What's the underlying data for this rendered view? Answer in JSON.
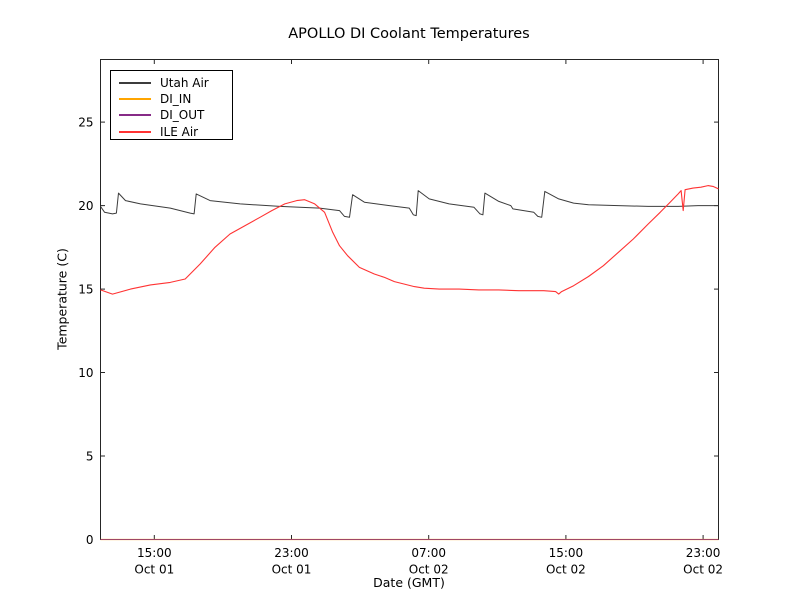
{
  "chart_data": {
    "type": "line",
    "title": "APOLLO DI Coolant Temperatures",
    "xlabel": "Date (GMT)",
    "ylabel": "Temperature (C)",
    "grid": false,
    "legend_position": "upper left",
    "x_unit": "hours since Oct 01 00:00 GMT",
    "xlim_hours": [
      11.86,
      47.9
    ],
    "ylim": [
      0,
      28.75
    ],
    "y_ticks": [
      0,
      5,
      10,
      15,
      20,
      25
    ],
    "x_ticks": [
      {
        "hour": 15,
        "time": "15:00",
        "date": "Oct 01"
      },
      {
        "hour": 23,
        "time": "23:00",
        "date": "Oct 01"
      },
      {
        "hour": 31,
        "time": "07:00",
        "date": "Oct 02"
      },
      {
        "hour": 39,
        "time": "15:00",
        "date": "Oct 02"
      },
      {
        "hour": 47,
        "time": "23:00",
        "date": "Oct 02"
      }
    ],
    "series": [
      {
        "name": "Utah Air",
        "color": "#3c3c3c",
        "points": [
          [
            11.86,
            19.95
          ],
          [
            12.1,
            19.6
          ],
          [
            12.56,
            19.5
          ],
          [
            12.79,
            19.55
          ],
          [
            12.91,
            20.75
          ],
          [
            13.32,
            20.3
          ],
          [
            14.19,
            20.1
          ],
          [
            15.93,
            19.85
          ],
          [
            17.09,
            19.55
          ],
          [
            17.32,
            19.5
          ],
          [
            17.44,
            20.7
          ],
          [
            18.25,
            20.3
          ],
          [
            20.0,
            20.1
          ],
          [
            22.32,
            19.95
          ],
          [
            24.64,
            19.85
          ],
          [
            25.8,
            19.7
          ],
          [
            26.09,
            19.35
          ],
          [
            26.38,
            19.3
          ],
          [
            26.56,
            20.65
          ],
          [
            27.25,
            20.2
          ],
          [
            28.71,
            20.0
          ],
          [
            29.87,
            19.85
          ],
          [
            30.1,
            19.45
          ],
          [
            30.27,
            19.4
          ],
          [
            30.39,
            20.9
          ],
          [
            31.03,
            20.4
          ],
          [
            32.19,
            20.1
          ],
          [
            33.64,
            19.9
          ],
          [
            33.99,
            19.5
          ],
          [
            34.16,
            19.45
          ],
          [
            34.28,
            20.75
          ],
          [
            35.09,
            20.25
          ],
          [
            35.79,
            20.0
          ],
          [
            35.91,
            19.8
          ],
          [
            37.13,
            19.6
          ],
          [
            37.36,
            19.35
          ],
          [
            37.59,
            19.3
          ],
          [
            37.77,
            20.85
          ],
          [
            38.58,
            20.4
          ],
          [
            39.45,
            20.15
          ],
          [
            40.32,
            20.05
          ],
          [
            42.06,
            20.0
          ],
          [
            43.8,
            19.95
          ],
          [
            45.55,
            19.95
          ],
          [
            46.71,
            20.0
          ],
          [
            47.9,
            20.0
          ]
        ]
      },
      {
        "name": "DI_IN",
        "color": "#ffa500",
        "points": [
          [
            11.86,
            0
          ],
          [
            47.9,
            0
          ]
        ]
      },
      {
        "name": "DI_OUT",
        "color": "#872b87",
        "points": [
          [
            11.86,
            0
          ],
          [
            47.9,
            0
          ]
        ]
      },
      {
        "name": "ILE Air",
        "color": "#ff3333",
        "points": [
          [
            11.86,
            14.95
          ],
          [
            12.56,
            14.7
          ],
          [
            13.61,
            15.0
          ],
          [
            14.77,
            15.25
          ],
          [
            15.93,
            15.4
          ],
          [
            16.8,
            15.6
          ],
          [
            17.67,
            16.5
          ],
          [
            18.54,
            17.5
          ],
          [
            19.41,
            18.3
          ],
          [
            20.29,
            18.8
          ],
          [
            21.16,
            19.3
          ],
          [
            21.85,
            19.7
          ],
          [
            22.61,
            20.1
          ],
          [
            23.3,
            20.3
          ],
          [
            23.77,
            20.35
          ],
          [
            24.35,
            20.1
          ],
          [
            24.93,
            19.6
          ],
          [
            25.4,
            18.4
          ],
          [
            25.8,
            17.6
          ],
          [
            26.27,
            17.0
          ],
          [
            26.96,
            16.3
          ],
          [
            27.83,
            15.9
          ],
          [
            28.42,
            15.7
          ],
          [
            29.0,
            15.45
          ],
          [
            29.58,
            15.3
          ],
          [
            30.16,
            15.15
          ],
          [
            30.74,
            15.05
          ],
          [
            31.61,
            15.0
          ],
          [
            32.77,
            15.0
          ],
          [
            33.93,
            14.95
          ],
          [
            35.09,
            14.95
          ],
          [
            36.25,
            14.9
          ],
          [
            37.71,
            14.9
          ],
          [
            38.4,
            14.85
          ],
          [
            38.58,
            14.7
          ],
          [
            38.75,
            14.85
          ],
          [
            39.45,
            15.2
          ],
          [
            40.32,
            15.75
          ],
          [
            41.19,
            16.4
          ],
          [
            42.06,
            17.2
          ],
          [
            42.93,
            18.0
          ],
          [
            43.8,
            18.9
          ],
          [
            44.5,
            19.6
          ],
          [
            45.08,
            20.2
          ],
          [
            45.55,
            20.7
          ],
          [
            45.72,
            20.9
          ],
          [
            45.84,
            19.7
          ],
          [
            45.95,
            20.95
          ],
          [
            46.42,
            21.05
          ],
          [
            46.88,
            21.1
          ],
          [
            47.29,
            21.2
          ],
          [
            47.58,
            21.15
          ],
          [
            47.9,
            21.0
          ]
        ]
      }
    ]
  }
}
